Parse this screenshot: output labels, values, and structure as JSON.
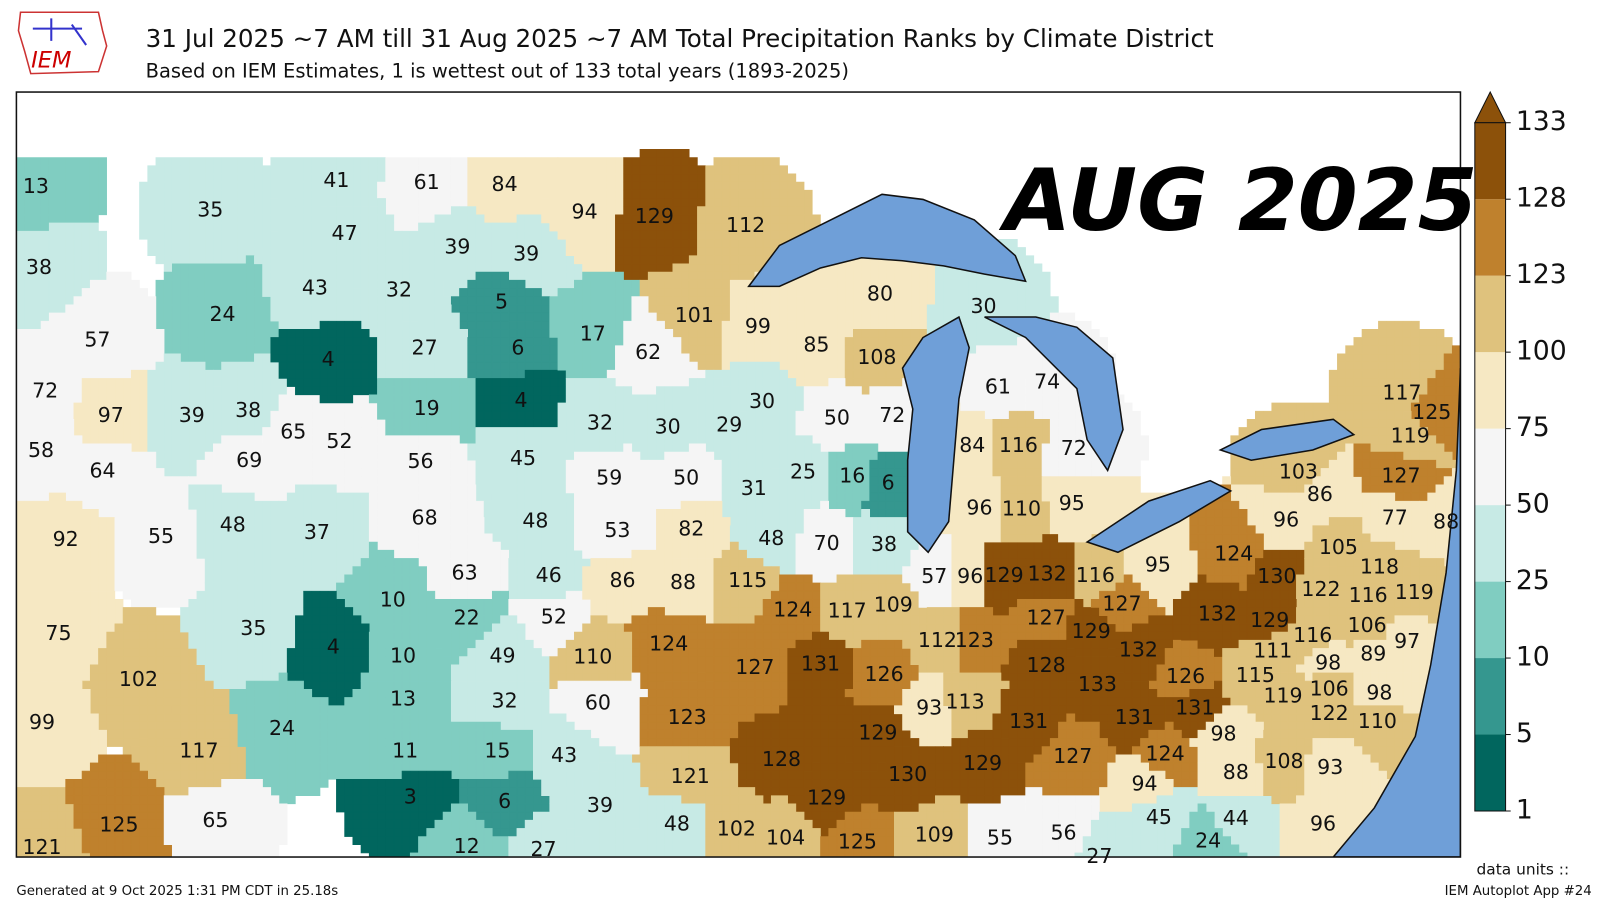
{
  "header": {
    "logo": "IEM",
    "title": "31 Jul 2025 ~7 AM till 31 Aug 2025 ~7 AM Total Precipitation Ranks by Climate District",
    "subtitle": "Based on IEM Estimates, 1 is wettest out of 133 total years (1893-2025)"
  },
  "overlay_label": "AUG 2025",
  "colorbar": {
    "ticks": [
      1,
      5,
      10,
      25,
      50,
      75,
      100,
      123,
      128,
      133
    ],
    "colors": [
      "#01665e",
      "#35978f",
      "#80cdc1",
      "#c7eae5",
      "#f5f5f5",
      "#f6e8c3",
      "#dfc27d",
      "#bf812d",
      "#8c510a"
    ]
  },
  "districts": [
    13,
    35,
    38,
    24,
    57,
    72,
    97,
    39,
    38,
    58,
    64,
    69,
    92,
    55,
    48,
    65,
    52,
    41,
    61,
    84,
    47,
    39,
    39,
    43,
    32,
    5,
    4,
    27,
    6,
    19,
    4,
    56,
    45,
    37,
    68,
    48,
    63,
    46,
    10,
    22,
    52,
    75,
    102,
    35,
    4,
    99,
    117,
    24,
    121,
    125,
    65,
    10,
    49,
    13,
    32,
    11,
    15,
    3,
    6,
    12,
    27,
    94,
    129,
    112,
    17,
    101,
    62,
    99,
    85,
    80,
    108,
    30,
    32,
    30,
    29,
    30,
    50,
    72,
    59,
    50,
    31,
    25,
    16,
    6,
    53,
    82,
    48,
    70,
    38,
    86,
    88,
    115,
    124,
    117,
    109,
    57,
    96,
    129,
    132,
    116,
    95,
    124,
    127,
    131,
    126,
    112,
    123,
    127,
    129,
    127,
    132,
    128,
    133,
    126,
    110,
    60,
    123,
    43,
    121,
    128,
    129,
    93,
    113,
    131,
    131,
    131,
    39,
    129,
    130,
    129,
    127,
    124,
    94,
    48,
    102,
    104,
    125,
    109,
    55,
    56,
    27,
    45,
    44,
    24,
    61,
    74,
    84,
    116,
    72,
    96,
    110,
    95,
    117,
    125,
    119,
    103,
    86,
    127,
    96,
    77,
    88,
    124,
    130,
    105,
    118,
    122,
    116,
    119,
    132,
    129,
    106,
    116,
    97,
    111,
    98,
    89,
    115,
    106,
    98,
    119,
    122,
    110,
    98,
    88,
    108,
    93,
    96
  ],
  "footer": {
    "generated": "Generated at 9 Oct 2025 1:31 PM CDT in 25.18s",
    "units": "data units ::",
    "app": "IEM Autoplot App #24"
  }
}
